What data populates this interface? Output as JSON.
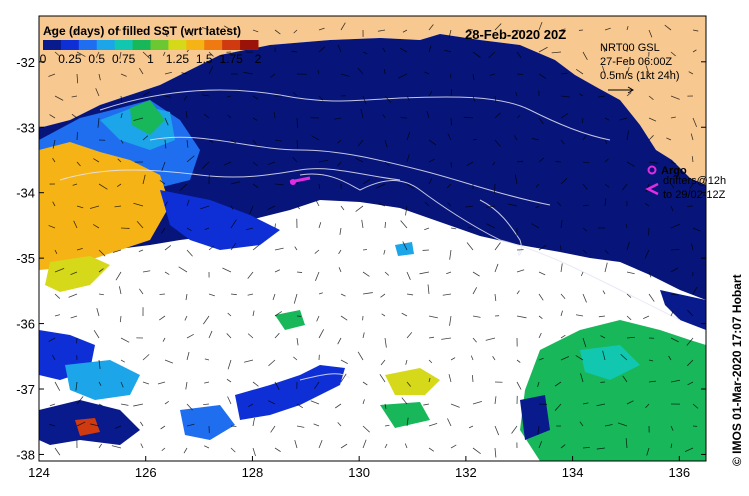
{
  "map": {
    "title_date": "28-Feb-2020 20Z",
    "colorbar": {
      "title": "Age (days) of filled SST (wrt latest)",
      "tick_labels": [
        "0",
        "0.25",
        "0.5",
        "0.75",
        "1",
        "1.25",
        "1.5",
        "1.75",
        "2"
      ],
      "colors": [
        "#081a8c",
        "#0f2fd6",
        "#1f6ef0",
        "#1ca5e8",
        "#12c7b0",
        "#18b75a",
        "#6bc832",
        "#d6d81a",
        "#f5b315",
        "#f07a12",
        "#cf3a10",
        "#9a1208"
      ]
    },
    "current_info": {
      "line1": "NRT00 GSL",
      "line2": "27-Feb 06:00Z",
      "line3": "0.5m/s (1kt 24h)"
    },
    "argo_legend": {
      "label": "Argo",
      "drifter_line1": "drifters@12h",
      "drifter_line2": "to 29/02-12Z"
    },
    "credit": "© IMOS 01-Mar-2020 17:07 Hobart",
    "x_axis": {
      "range": [
        124,
        136.5
      ],
      "ticks": [
        124,
        126,
        128,
        130,
        132,
        134,
        136
      ],
      "tick_labels": [
        "124",
        "126",
        "128",
        "130",
        "132",
        "134",
        "136"
      ]
    },
    "y_axis": {
      "range": [
        -38.1,
        -31.3
      ],
      "ticks": [
        -32,
        -33,
        -34,
        -35,
        -36,
        -37,
        -38
      ],
      "tick_labels": [
        "-32",
        "-33",
        "-34",
        "-35",
        "-36",
        "-37",
        "-38"
      ]
    },
    "colors": {
      "land": "#f8c891",
      "ocean_recent": "#07157a",
      "no_data": "#ffffff",
      "argo_marker": "#e22ce2"
    }
  }
}
